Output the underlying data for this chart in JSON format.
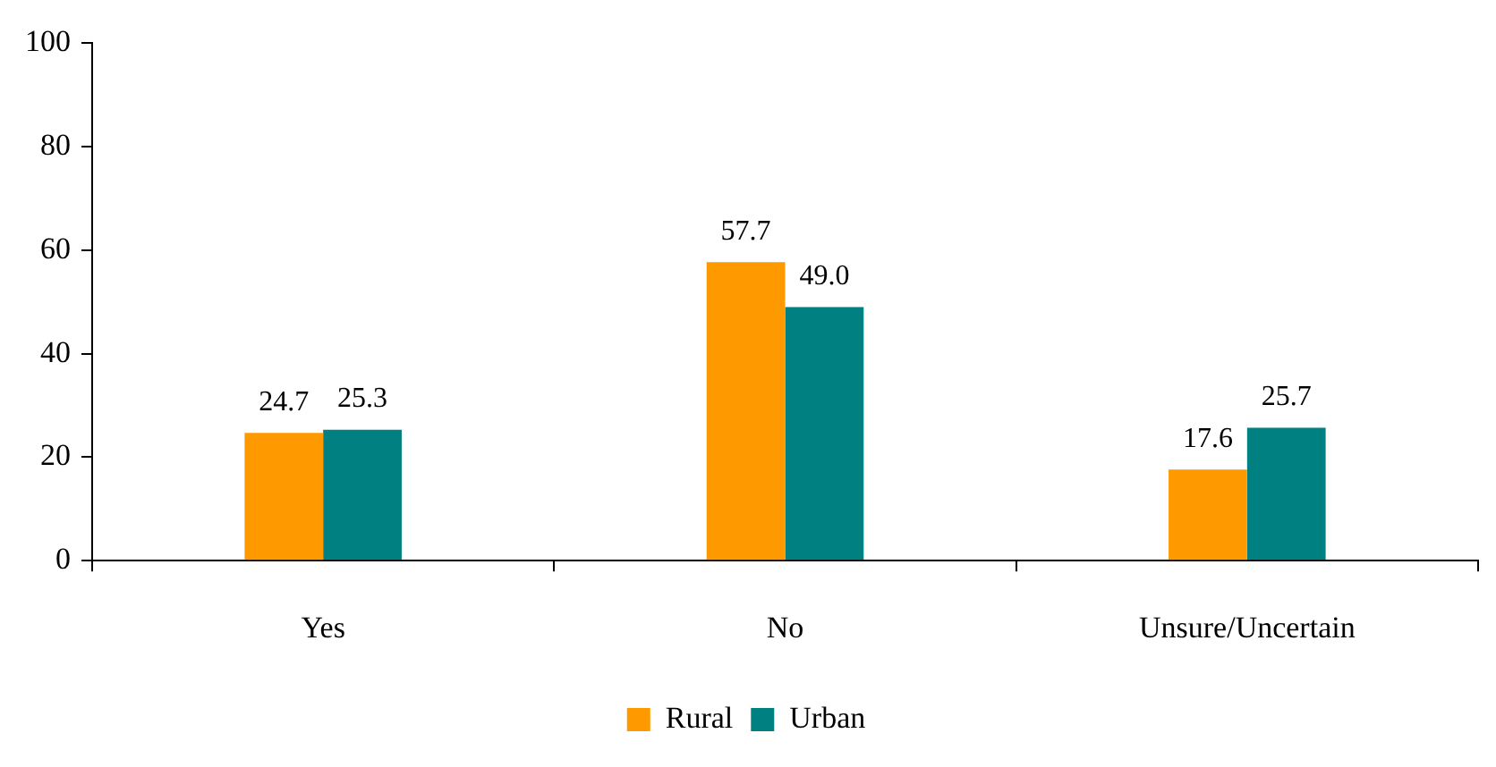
{
  "chart_data": {
    "type": "bar",
    "categories": [
      "Yes",
      "No",
      "Unsure/Uncertain"
    ],
    "series": [
      {
        "name": "Rural",
        "color": "#ff9900",
        "values": [
          24.7,
          57.7,
          17.6
        ],
        "value_labels": [
          "24.7",
          "57.7",
          "17.6"
        ]
      },
      {
        "name": "Urban",
        "color": "#008080",
        "values": [
          25.3,
          49.0,
          25.7
        ],
        "value_labels": [
          "25.3",
          "49.0",
          "25.7"
        ]
      }
    ],
    "ylim": [
      0,
      100
    ],
    "yticks": [
      0,
      20,
      40,
      60,
      80,
      100
    ],
    "grid": false,
    "legend": "bottom"
  }
}
